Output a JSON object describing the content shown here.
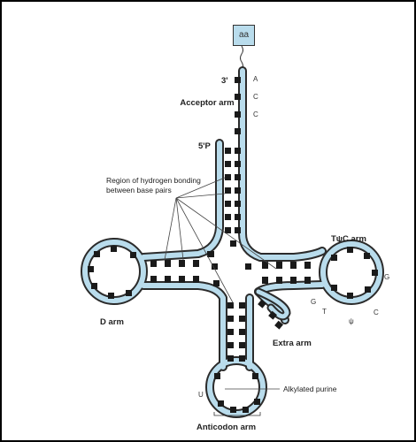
{
  "diagram": {
    "amino_acid": "aa",
    "labels": {
      "three_prime": "3'",
      "five_prime": "5'P",
      "acceptor_arm": "Acceptor arm",
      "region": "Region of hydrogen bonding between base pairs",
      "tpsic_arm": "TψC arm",
      "d_arm": "D arm",
      "extra_arm": "Extra arm",
      "alkylated_purine": "Alkylated purine",
      "anticodon_arm": "Anticodon arm"
    },
    "nucleotides": {
      "acceptor": [
        "A",
        "C",
        "C"
      ],
      "tpsic_loop": [
        "G",
        "T",
        "ψ",
        "C",
        "G"
      ],
      "anticodon_loop": "U"
    },
    "colors": {
      "strand_fill": "#b9dcec",
      "strand_outline": "#2b2b2b",
      "base": "#1a1a1a",
      "pointer_line": "#444444"
    }
  }
}
